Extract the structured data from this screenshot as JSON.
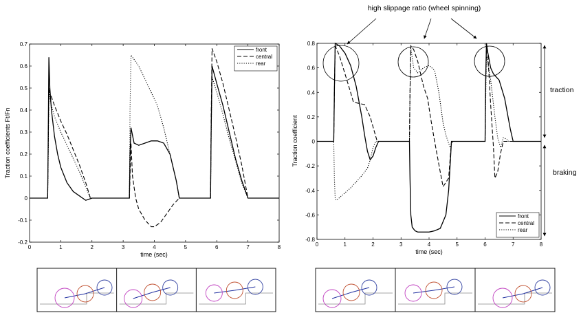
{
  "annotation": "high slippage ratio (wheel spinning)",
  "side_labels": {
    "traction": "traction",
    "braking": "braking"
  },
  "chart_data": [
    {
      "type": "line",
      "xlabel": "time (sec)",
      "ylabel": "Traction coefficients Ft/Fn",
      "xlim": [
        0,
        8
      ],
      "ylim": [
        -0.2,
        0.7
      ],
      "xticks": [
        "0",
        "1",
        "2",
        "3",
        "4",
        "5",
        "6",
        "7",
        "8"
      ],
      "yticks": [
        "-0.2",
        "-0.1",
        "0",
        "0.1",
        "0.2",
        "0.3",
        "0.4",
        "0.5",
        "0.6",
        "0.7"
      ],
      "legend": "top-right",
      "series": [
        {
          "name": "front",
          "style": "solid",
          "x": [
            0,
            0.58,
            0.6,
            0.62,
            0.65,
            0.7,
            0.8,
            0.9,
            1.0,
            1.2,
            1.4,
            1.6,
            1.7,
            1.8,
            1.9,
            2.0,
            2.5,
            3.2,
            3.22,
            3.25,
            3.35,
            3.5,
            3.7,
            3.9,
            4.1,
            4.3,
            4.5,
            4.7,
            4.8,
            5.0,
            5.8,
            5.82,
            5.85,
            6.0,
            6.2,
            6.4,
            6.6,
            6.8,
            7.0,
            7.5,
            8
          ],
          "y": [
            0,
            0,
            0.3,
            0.64,
            0.5,
            0.4,
            0.28,
            0.2,
            0.14,
            0.07,
            0.03,
            0.01,
            0,
            -0.01,
            -0.005,
            0,
            0,
            0,
            0.2,
            0.32,
            0.25,
            0.24,
            0.25,
            0.26,
            0.26,
            0.25,
            0.2,
            0.08,
            0,
            0,
            0,
            0.3,
            0.6,
            0.52,
            0.42,
            0.3,
            0.18,
            0.08,
            0,
            0,
            0
          ]
        },
        {
          "name": "central",
          "style": "dashed",
          "x": [
            0,
            0.58,
            0.6,
            0.62,
            0.65,
            0.7,
            0.8,
            1.0,
            1.2,
            1.4,
            1.6,
            1.8,
            1.95,
            2.5,
            3.2,
            3.22,
            3.25,
            3.3,
            3.4,
            3.5,
            3.7,
            3.9,
            4.0,
            4.2,
            4.4,
            4.6,
            4.8,
            5.0,
            5.8,
            5.82,
            5.85,
            6.0,
            6.2,
            6.4,
            6.6,
            6.8,
            7.0,
            7.5,
            8
          ],
          "y": [
            0,
            0,
            0.25,
            0.5,
            0.48,
            0.46,
            0.42,
            0.35,
            0.29,
            0.22,
            0.15,
            0.07,
            0,
            0,
            0,
            0.1,
            0.25,
            0.1,
            0,
            -0.05,
            -0.1,
            -0.13,
            -0.13,
            -0.11,
            -0.07,
            -0.03,
            0,
            0,
            0,
            0.35,
            0.68,
            0.62,
            0.52,
            0.4,
            0.28,
            0.15,
            0,
            0,
            0
          ]
        },
        {
          "name": "rear",
          "style": "dotted",
          "x": [
            0,
            0.58,
            0.6,
            0.62,
            0.65,
            0.7,
            0.8,
            1.0,
            1.2,
            1.4,
            1.6,
            1.8,
            1.95,
            2.5,
            3.2,
            3.22,
            3.25,
            3.5,
            3.7,
            3.9,
            4.1,
            4.3,
            4.5,
            4.7,
            4.8,
            5.0,
            5.8,
            5.82,
            5.85,
            6.0,
            6.2,
            6.4,
            6.6,
            6.8,
            7.0,
            7.5,
            8
          ],
          "y": [
            0,
            0,
            0.2,
            0.5,
            0.45,
            0.42,
            0.37,
            0.3,
            0.24,
            0.18,
            0.12,
            0.05,
            0,
            0,
            0,
            0.4,
            0.65,
            0.6,
            0.54,
            0.48,
            0.42,
            0.32,
            0.2,
            0.08,
            0,
            0,
            0,
            0.28,
            0.55,
            0.48,
            0.38,
            0.27,
            0.17,
            0.07,
            0,
            0,
            0
          ]
        }
      ]
    },
    {
      "type": "line",
      "xlabel": "time (sec)",
      "ylabel": "Traction coefficient",
      "xlim": [
        0,
        8
      ],
      "ylim": [
        -0.8,
        0.8
      ],
      "xticks": [
        "0",
        "1",
        "2",
        "3",
        "4",
        "5",
        "6",
        "7",
        "8"
      ],
      "yticks": [
        "-0.8",
        "-0.6",
        "-0.4",
        "-0.2",
        "0",
        "0.2",
        "0.4",
        "0.6",
        "0.8"
      ],
      "legend": "bottom-right",
      "series": [
        {
          "name": "front",
          "style": "solid",
          "x": [
            0,
            0.6,
            0.62,
            0.65,
            0.8,
            1.0,
            1.2,
            1.4,
            1.6,
            1.7,
            1.8,
            1.9,
            2.0,
            2.1,
            2.2,
            3.3,
            3.32,
            3.35,
            3.4,
            3.5,
            3.6,
            3.8,
            4.0,
            4.2,
            4.4,
            4.6,
            4.7,
            4.75,
            4.8,
            6.0,
            6.02,
            6.05,
            6.1,
            6.2,
            6.3,
            6.5,
            6.7,
            6.9,
            7.0,
            8
          ],
          "y": [
            0,
            0,
            0.4,
            0.8,
            0.78,
            0.72,
            0.62,
            0.45,
            0.2,
            0.05,
            -0.08,
            -0.15,
            -0.12,
            -0.05,
            0,
            0,
            -0.3,
            -0.6,
            -0.7,
            -0.73,
            -0.74,
            -0.74,
            -0.74,
            -0.73,
            -0.71,
            -0.6,
            -0.4,
            -0.2,
            0,
            0,
            0.5,
            0.8,
            0.72,
            0.6,
            0.55,
            0.5,
            0.35,
            0.1,
            0,
            0
          ]
        },
        {
          "name": "central",
          "style": "dashed",
          "x": [
            0,
            0.6,
            0.62,
            0.65,
            0.8,
            1.0,
            1.2,
            1.3,
            1.5,
            1.7,
            1.9,
            2.05,
            2.15,
            3.3,
            3.32,
            3.35,
            3.45,
            3.6,
            3.8,
            3.95,
            4.05,
            4.2,
            4.4,
            4.5,
            4.7,
            4.8,
            6.0,
            6.02,
            6.05,
            6.1,
            6.2,
            6.3,
            6.35,
            6.45,
            6.55,
            6.65,
            6.8,
            6.9,
            8
          ],
          "y": [
            0,
            0,
            0.4,
            0.78,
            0.7,
            0.55,
            0.4,
            0.32,
            0.31,
            0.3,
            0.2,
            0.08,
            0,
            0,
            0.4,
            0.78,
            0.75,
            0.65,
            0.45,
            0.35,
            0.2,
            0,
            -0.25,
            -0.37,
            -0.3,
            0,
            0,
            0.4,
            0.78,
            0.7,
            0.3,
            -0.05,
            -0.3,
            -0.25,
            -0.1,
            0,
            0,
            0,
            0
          ]
        },
        {
          "name": "rear",
          "style": "dotted",
          "x": [
            0,
            0.6,
            0.62,
            0.65,
            0.7,
            0.8,
            1.0,
            1.2,
            1.4,
            1.6,
            1.8,
            1.9,
            2.0,
            2.1,
            3.3,
            3.32,
            3.35,
            3.45,
            3.6,
            3.8,
            4.0,
            4.2,
            4.35,
            4.5,
            4.6,
            4.75,
            4.85,
            6.0,
            6.02,
            6.05,
            6.2,
            6.35,
            6.45,
            6.55,
            6.65,
            6.75,
            6.85,
            7.0,
            8
          ],
          "y": [
            0,
            0,
            -0.3,
            -0.47,
            -0.48,
            -0.46,
            -0.42,
            -0.38,
            -0.33,
            -0.28,
            -0.22,
            -0.15,
            -0.05,
            0,
            0,
            0.4,
            0.76,
            0.6,
            0.56,
            0.6,
            0.62,
            0.58,
            0.4,
            0.15,
            0.05,
            -0.05,
            0,
            0,
            0.3,
            0.7,
            0.5,
            0.2,
            0.03,
            -0.05,
            0.03,
            0.02,
            0,
            0,
            0
          ]
        }
      ]
    }
  ],
  "snapshot_panels": [
    {
      "group": "left",
      "count": 3
    },
    {
      "group": "right",
      "count": 3
    }
  ]
}
